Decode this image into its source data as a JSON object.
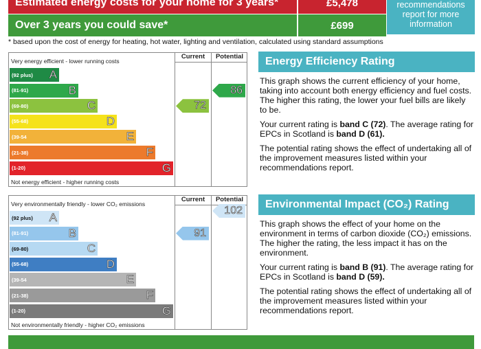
{
  "costs": {
    "row1_label": "Estimated energy costs for your home for 3 years*",
    "row1_value": "£5,478",
    "row2_label": "Over 3 years you could save*",
    "row2_value": "£699",
    "recommend_text": "See your recommendations report for more information"
  },
  "footnote": "* based upon the cost of energy for heating, hot water, lighting and ventilation, calculated using standard assumptions",
  "energy": {
    "top_caption": "Very energy efficient - lower running costs",
    "bottom_caption": "Not energy efficient - higher running costs",
    "current_header": "Current",
    "potential_header": "Potential",
    "current_value": "72",
    "potential_value": "86",
    "current_rating": 72,
    "potential_rating": 86,
    "bands": [
      {
        "range": "(92 plus)",
        "letter": "A",
        "color": "#1f8a45"
      },
      {
        "range": "(81-91)",
        "letter": "B",
        "color": "#2ea84a"
      },
      {
        "range": "(69-80)",
        "letter": "C",
        "color": "#8cc23f"
      },
      {
        "range": "(55-68)",
        "letter": "D",
        "color": "#f5e21b"
      },
      {
        "range": "(39-54",
        "letter": "E",
        "color": "#f2b23a"
      },
      {
        "range": "(21-38)",
        "letter": "F",
        "color": "#ec7a2c"
      },
      {
        "range": "(1-20)",
        "letter": "G",
        "color": "#e2232a"
      }
    ],
    "title": "Energy Efficiency Rating",
    "p1": "This graph shows the current efficiency of your home, taking into account both energy efficiency and fuel costs. The higher this rating, the lower your fuel bills are likely to be.",
    "p2a": "Your current rating is ",
    "p2b": "band C (72)",
    "p2c": ". The average rating for EPCs in Scotland is ",
    "p2d": "band D (61).",
    "p3": "The potential rating shows the effect of undertaking all of the improvement measures listed within your recommendations report."
  },
  "environment": {
    "top_caption": "Very environmentally friendly - lower CO₂ emissions",
    "bottom_caption": "Not environmentally friendly - higher CO₂ emissions",
    "current_header": "Current",
    "potential_header": "Potential",
    "current_value": "91",
    "potential_value": "102",
    "current_rating": 91,
    "potential_rating": 102,
    "bands": [
      {
        "range": "(92 plus)",
        "letter": "A",
        "color": "#cfe5f6"
      },
      {
        "range": "(81-91)",
        "letter": "B",
        "color": "#95c6ec"
      },
      {
        "range": "(69-80)",
        "letter": "C",
        "color": "#b6d9f2"
      },
      {
        "range": "(55-68)",
        "letter": "D",
        "color": "#3f7ec3"
      },
      {
        "range": "(39-54",
        "letter": "E",
        "color": "#b5b5b5"
      },
      {
        "range": "(21-38)",
        "letter": "F",
        "color": "#9a9a9a"
      },
      {
        "range": "(1-20)",
        "letter": "G",
        "color": "#7b7b7b"
      }
    ],
    "title": "Environmental Impact (CO₂) Rating",
    "p1": "This graph shows the effect of your home on the environment in terms of carbon dioxide (CO₂) emissions. The higher the rating, the less impact it has on the environment.",
    "p2a": "Your current rating is ",
    "p2b": "band B (91)",
    "p2c": ". The average rating for EPCs in Scotland is ",
    "p2d": "band D (59).",
    "p3": "The potential rating shows the effect of undertaking all of the improvement measures listed within your recommendations report."
  }
}
